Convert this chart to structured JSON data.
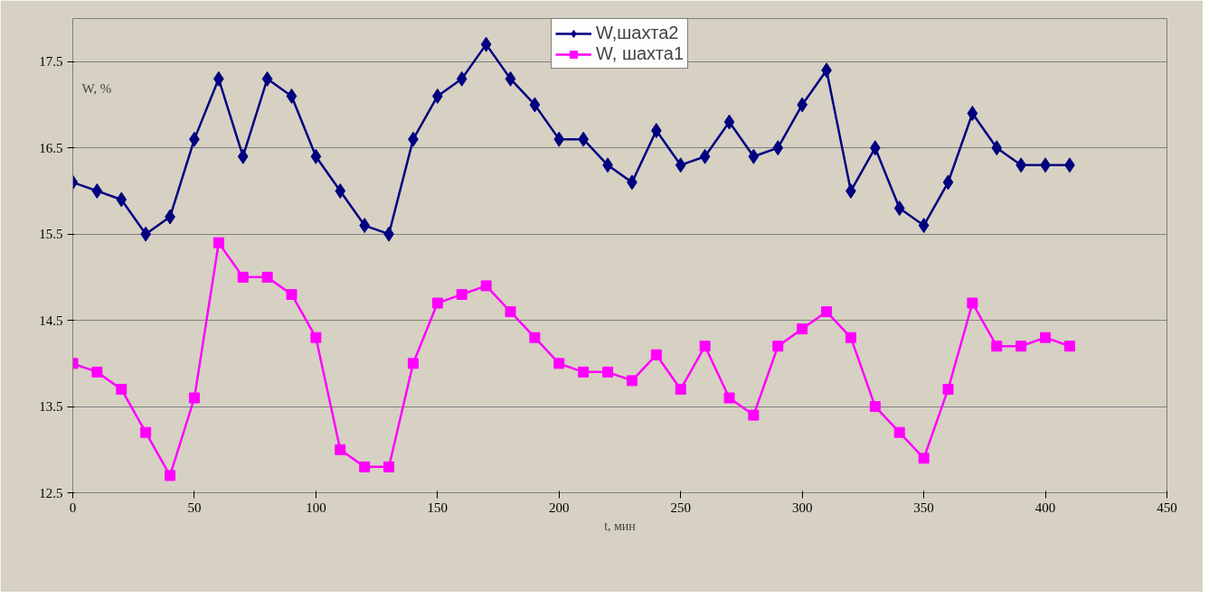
{
  "chart_data": {
    "type": "line",
    "xlabel": "t, мин",
    "ylabel": "W, %",
    "x": [
      0,
      10,
      20,
      30,
      40,
      50,
      60,
      70,
      80,
      90,
      100,
      110,
      120,
      130,
      140,
      150,
      160,
      170,
      180,
      190,
      200,
      210,
      220,
      230,
      240,
      250,
      260,
      270,
      280,
      290,
      300,
      310,
      320,
      330,
      340,
      350,
      360,
      370,
      380,
      390,
      400,
      410
    ],
    "series": [
      {
        "name": "W,шахта2",
        "color": "#000080",
        "marker": "diamond",
        "values": [
          16.1,
          16.0,
          15.9,
          15.5,
          15.7,
          16.6,
          17.3,
          16.4,
          17.3,
          17.1,
          16.4,
          16.0,
          15.6,
          15.5,
          16.6,
          17.1,
          17.3,
          17.7,
          17.3,
          17.0,
          16.6,
          16.6,
          16.3,
          16.1,
          16.7,
          16.3,
          16.4,
          16.8,
          16.4,
          16.5,
          17.0,
          17.4,
          16.0,
          16.5,
          15.8,
          15.6,
          16.1,
          16.9,
          16.5,
          16.3,
          16.3,
          16.3
        ]
      },
      {
        "name": "W, шахта1",
        "color": "#ff00ff",
        "marker": "square",
        "values": [
          14.0,
          13.9,
          13.7,
          13.2,
          12.7,
          13.6,
          15.4,
          15.0,
          15.0,
          14.8,
          14.3,
          13.0,
          12.8,
          12.8,
          14.0,
          14.7,
          14.8,
          14.9,
          14.6,
          14.3,
          14.0,
          13.9,
          13.9,
          13.8,
          14.1,
          13.7,
          14.2,
          13.6,
          13.4,
          14.2,
          14.4,
          14.6,
          14.3,
          13.5,
          13.2,
          12.9,
          13.7,
          14.7,
          14.2,
          14.2,
          14.3,
          14.2
        ]
      }
    ],
    "xlim": [
      0,
      450
    ],
    "xticks": [
      0,
      50,
      100,
      150,
      200,
      250,
      300,
      350,
      400,
      450
    ],
    "ylim": [
      12.5,
      18.0
    ],
    "yticks": [
      12.5,
      13.5,
      14.5,
      15.5,
      16.5,
      17.5
    ],
    "grid": "y",
    "legend": "top",
    "line_style": "solid"
  }
}
